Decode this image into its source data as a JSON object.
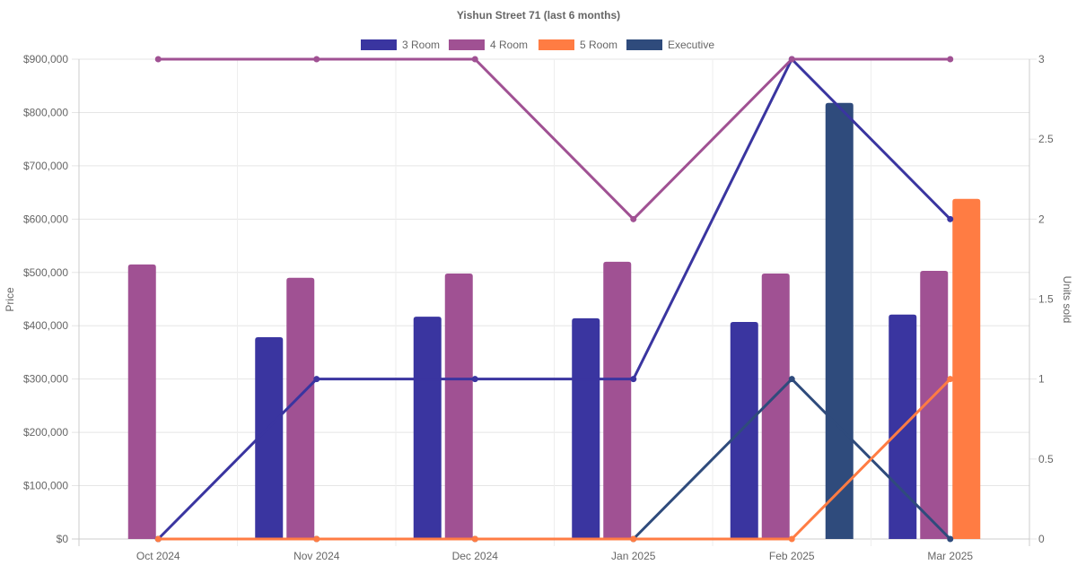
{
  "chart_data": {
    "type": "bar",
    "title": "Yishun Street 71 (last 6 months)",
    "categories": [
      "Oct 2024",
      "Nov 2024",
      "Dec 2024",
      "Jan 2025",
      "Feb 2025",
      "Mar 2025"
    ],
    "ylabel": "Price",
    "y2label": "Units sold",
    "ylim": [
      0,
      900000
    ],
    "y2lim": [
      0,
      3
    ],
    "yticks": [
      "$0",
      "$100,000",
      "$200,000",
      "$300,000",
      "$400,000",
      "$500,000",
      "$600,000",
      "$700,000",
      "$800,000",
      "$900,000"
    ],
    "y2ticks": [
      "0",
      "0.5",
      "1",
      "1.5",
      "2",
      "2.5",
      "3"
    ],
    "legend_position": "top",
    "grid": true,
    "series": [
      {
        "name": "3 Room",
        "color": "#3a35a0",
        "price": [
          null,
          378500,
          417000,
          414000,
          407000,
          421000
        ],
        "units": [
          0,
          1,
          1,
          1,
          3,
          2
        ]
      },
      {
        "name": "4 Room",
        "color": "#a05193",
        "price": [
          515000,
          490000,
          498000,
          520000,
          498000,
          503000
        ],
        "units": [
          3,
          3,
          3,
          2,
          3,
          3
        ]
      },
      {
        "name": "5 Room",
        "color": "#ff7c43",
        "price": [
          null,
          null,
          null,
          null,
          null,
          638000
        ],
        "units": [
          0,
          0,
          0,
          0,
          0,
          1
        ]
      },
      {
        "name": "Executive",
        "color": "#2f4b7c",
        "price": [
          null,
          null,
          null,
          null,
          818000,
          null
        ],
        "units": [
          0,
          0,
          0,
          0,
          1,
          0
        ]
      }
    ]
  }
}
